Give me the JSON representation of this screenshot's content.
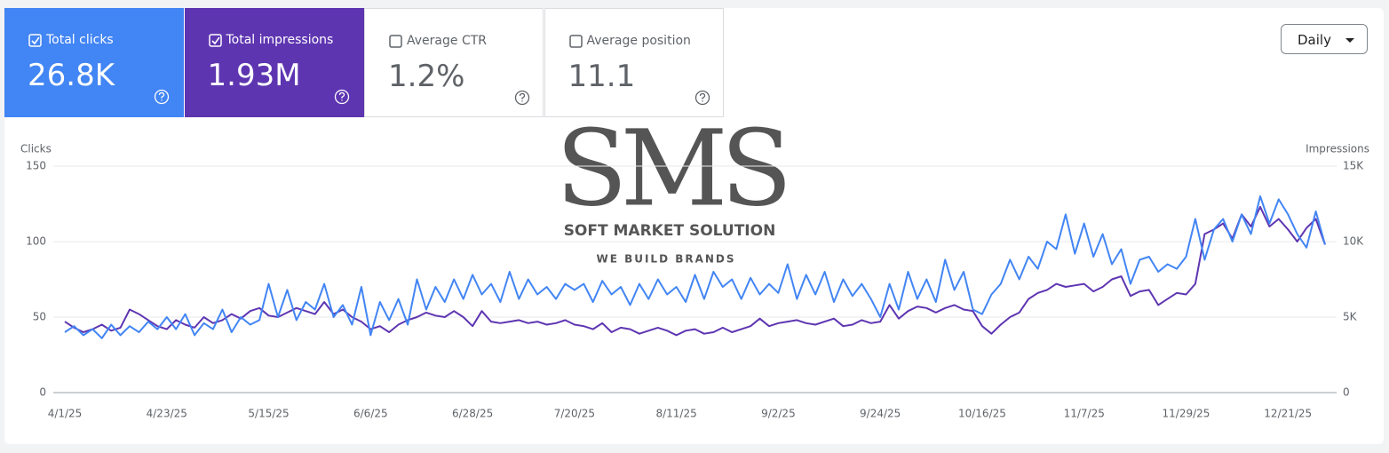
{
  "metrics": [
    {
      "label": "Total clicks",
      "value": "26.8K",
      "checked": true,
      "color": "#4285f4"
    },
    {
      "label": "Total impressions",
      "value": "1.93M",
      "checked": true,
      "color": "#5e35b1"
    },
    {
      "label": "Average CTR",
      "value": "1.2%",
      "checked": false,
      "color": "#ffffff"
    },
    {
      "label": "Average position",
      "value": "11.1",
      "checked": false,
      "color": "#ffffff"
    }
  ],
  "dropdown": "Daily",
  "watermark": {
    "logo": "SMS",
    "name": "SOFT MARKET SOLUTION",
    "tagline": "WE BUILD BRANDS"
  },
  "chart_data": {
    "type": "line",
    "y_label": "Clicks",
    "y2_label": "Impressions",
    "grid": true,
    "categories": [
      "4/1/25",
      null,
      null,
      null,
      null,
      null,
      null,
      null,
      null,
      null,
      null,
      "4/23/25",
      null,
      null,
      null,
      null,
      null,
      null,
      null,
      null,
      null,
      null,
      "5/15/25",
      null,
      null,
      null,
      null,
      null,
      null,
      null,
      null,
      null,
      null,
      "6/6/25",
      null,
      null,
      null,
      null,
      null,
      null,
      null,
      null,
      null,
      null,
      "6/28/25",
      null,
      null,
      null,
      null,
      null,
      null,
      null,
      null,
      null,
      null,
      "7/20/25",
      null,
      null,
      null,
      null,
      null,
      null,
      null,
      null,
      null,
      null,
      "8/11/25",
      null,
      null,
      null,
      null,
      null,
      null,
      null,
      null,
      null,
      null,
      "9/2/25",
      null,
      null,
      null,
      null,
      null,
      null,
      null,
      null,
      null,
      null,
      "9/24/25",
      null,
      null,
      null,
      null,
      null,
      null,
      null,
      null,
      null,
      null,
      "10/16/25",
      null,
      null,
      null,
      null,
      null,
      null,
      null,
      null,
      null,
      null,
      "11/7/25",
      null,
      null,
      null,
      null,
      null,
      null,
      null,
      null,
      null,
      null,
      "11/29/25",
      null,
      null,
      null,
      null,
      null,
      null,
      null,
      null,
      null,
      null,
      "12/21/25",
      null,
      null,
      null,
      null
    ],
    "series": [
      {
        "color": "#4285f4",
        "values": [
          40,
          44,
          38,
          42,
          36,
          45,
          38,
          44,
          40,
          47,
          42,
          50,
          42,
          52,
          38,
          46,
          42,
          55,
          40,
          50,
          45,
          48,
          72,
          50,
          68,
          48,
          60,
          55,
          72,
          50,
          58,
          45,
          70,
          38,
          60,
          48,
          62,
          45,
          75,
          55,
          70,
          60,
          75,
          62,
          78,
          65,
          72,
          60,
          80,
          62,
          75,
          65,
          70,
          62,
          72,
          68,
          72,
          60,
          74,
          65,
          70,
          58,
          72,
          62,
          75,
          65,
          70,
          60,
          78,
          62,
          80,
          70,
          75,
          62,
          76,
          65,
          72,
          66,
          85,
          62,
          78,
          65,
          80,
          60,
          75,
          64,
          72,
          62,
          50,
          72,
          55,
          80,
          62,
          75,
          60,
          88,
          68,
          80,
          55,
          52,
          65,
          72,
          88,
          75,
          90,
          82,
          100,
          95,
          118,
          92,
          112,
          90,
          105,
          85,
          95,
          72,
          88,
          90,
          80,
          85,
          82,
          90,
          115,
          88,
          108,
          115,
          100,
          118,
          105,
          130,
          112,
          128,
          118,
          105,
          96,
          120,
          98
        ]
      },
      {
        "color": "#5e35b1",
        "axis": "y2",
        "values": [
          4700,
          4300,
          4000,
          4200,
          4500,
          4100,
          4300,
          5500,
          5200,
          4800,
          4400,
          4200,
          4800,
          4500,
          4300,
          5000,
          4600,
          4800,
          5200,
          4900,
          5400,
          5600,
          5100,
          5000,
          5300,
          5600,
          5400,
          5200,
          6000,
          5200,
          5500,
          5000,
          4700,
          4200,
          4400,
          4000,
          4500,
          4800,
          5000,
          5300,
          5100,
          5000,
          5400,
          5000,
          4400,
          5400,
          4700,
          4600,
          4700,
          4800,
          4600,
          4700,
          4500,
          4600,
          4800,
          4500,
          4400,
          4200,
          4600,
          4000,
          4300,
          4200,
          3900,
          4100,
          4300,
          4100,
          3800,
          4100,
          4200,
          3900,
          4000,
          4300,
          4000,
          4200,
          4400,
          4900,
          4400,
          4600,
          4700,
          4800,
          4600,
          4500,
          4700,
          4900,
          4400,
          4500,
          4800,
          4600,
          4700,
          5800,
          4900,
          5400,
          5700,
          5600,
          5300,
          5600,
          5800,
          5500,
          5400,
          4400,
          3900,
          4500,
          5000,
          5300,
          6200,
          6600,
          6800,
          7200,
          7000,
          7100,
          7200,
          6700,
          7000,
          7500,
          7700,
          6400,
          6700,
          6800,
          5800,
          6200,
          6600,
          6500,
          7200,
          10500,
          10800,
          11200,
          10200,
          11800,
          11000,
          12300,
          11000,
          11500,
          10800,
          10000,
          10900,
          11500,
          9800
        ]
      }
    ],
    "ylim": [
      0,
      150
    ],
    "yticks": [
      0,
      50,
      100,
      150
    ],
    "y2lim": [
      0,
      15000
    ],
    "y2ticks": [
      0,
      {
        "value": 5000,
        "label": "5K"
      },
      {
        "value": 10000,
        "label": "10K"
      },
      {
        "value": 15000,
        "label": "15K"
      }
    ]
  }
}
